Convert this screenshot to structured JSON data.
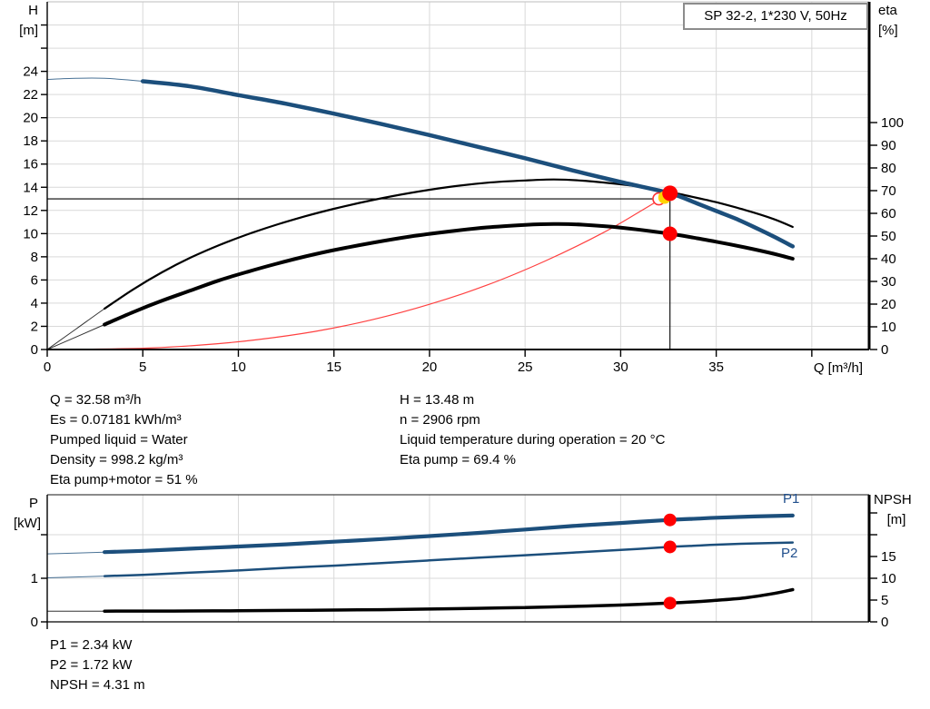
{
  "title_box": {
    "label": "SP 32-2, 1*230 V, 50Hz"
  },
  "info": {
    "left": [
      "Q = 32.58 m³/h",
      "Es = 0.07181 kWh/m³",
      "Pumped liquid = Water",
      "Density = 998.2 kg/m³",
      "Eta pump+motor = 51 %"
    ],
    "right": [
      "H = 13.48 m",
      "n = 2906 rpm",
      "Liquid temperature during operation = 20 °C",
      "Eta pump = 69.4 %"
    ],
    "bottom": [
      "P1 = 2.34 kW",
      "P2 = 1.72 kW",
      "NPSH = 4.31 m"
    ]
  },
  "operating_point": {
    "Q_m3h": 32.58,
    "H_m": 13.48,
    "eta_pump_pct": 69.4,
    "eta_pump_motor_pct": 51,
    "P1_kW": 2.34,
    "P2_kW": 1.72,
    "NPSH_m": 4.31,
    "n_rpm": 2906,
    "spec_Q_m3h": 32,
    "spec_H_m": 13
  },
  "colors": {
    "curve_blue": "#1c4f7c",
    "label_blue": "#1f4e8c",
    "red": "#ff0000",
    "system_red": "#ff4040",
    "yellow": "#ffd400",
    "grid": "#d9d9d9",
    "black": "#000000"
  },
  "chart_data": [
    {
      "id": "qh-chart",
      "type": "line",
      "title": "SP 32-2, 1*230 V, 50Hz",
      "x_axis": {
        "label": "Q [m³/h]",
        "min": 0,
        "max": 43,
        "show_labels": true,
        "ticks": [
          {
            "v": 0,
            "label": "0"
          },
          {
            "v": 5,
            "label": "5"
          },
          {
            "v": 10,
            "label": "10"
          },
          {
            "v": 15,
            "label": "15"
          },
          {
            "v": 20,
            "label": "20"
          },
          {
            "v": 25,
            "label": "25"
          },
          {
            "v": 30,
            "label": "30"
          },
          {
            "v": 35,
            "label": "35"
          },
          {
            "v": 40,
            "label": ""
          }
        ],
        "gridlines": [
          5,
          10,
          15,
          20,
          25,
          30,
          35,
          40
        ]
      },
      "y_left": {
        "label": "H",
        "unit": "[m]",
        "min": 0,
        "max": 30,
        "ticks": [
          {
            "v": 0,
            "label": "0"
          },
          {
            "v": 2,
            "label": "2"
          },
          {
            "v": 4,
            "label": "4"
          },
          {
            "v": 6,
            "label": "6"
          },
          {
            "v": 8,
            "label": "8"
          },
          {
            "v": 10,
            "label": "10"
          },
          {
            "v": 12,
            "label": "12"
          },
          {
            "v": 14,
            "label": "14"
          },
          {
            "v": 16,
            "label": "16"
          },
          {
            "v": 18,
            "label": "18"
          },
          {
            "v": 20,
            "label": "20"
          },
          {
            "v": 22,
            "label": "22"
          },
          {
            "v": 24,
            "label": "24"
          },
          {
            "v": 26,
            "label": ""
          },
          {
            "v": 28,
            "label": ""
          }
        ],
        "gridlines": [
          2,
          4,
          6,
          8,
          10,
          12,
          14,
          16,
          18,
          20,
          22,
          24,
          26,
          28
        ]
      },
      "y_right": {
        "label": "eta",
        "unit": "[%]",
        "min": 0,
        "max": 153.2,
        "ticks": [
          {
            "v": 0,
            "label": "0"
          },
          {
            "v": 10,
            "label": "10"
          },
          {
            "v": 20,
            "label": "20"
          },
          {
            "v": 30,
            "label": "30"
          },
          {
            "v": 40,
            "label": "40"
          },
          {
            "v": 50,
            "label": "50"
          },
          {
            "v": 60,
            "label": "60"
          },
          {
            "v": 70,
            "label": "70"
          },
          {
            "v": 80,
            "label": "80"
          },
          {
            "v": 90,
            "label": "90"
          },
          {
            "v": 100,
            "label": "100"
          }
        ]
      },
      "duty": {
        "spec_q": 32,
        "spec_h": 13,
        "actual_q": 32.58,
        "actual_h": 13.48
      },
      "series": [
        {
          "name": "system-curve",
          "axis": "left",
          "color": "#ff4040",
          "width": 1.2,
          "points": [
            [
              0,
              0
            ],
            [
              5,
              0.11
            ],
            [
              8,
              0.38
            ],
            [
              11,
              0.85
            ],
            [
              14,
              1.56
            ],
            [
              17,
              2.57
            ],
            [
              20,
              3.9
            ],
            [
              23,
              5.55
            ],
            [
              26,
              7.6
            ],
            [
              29,
              10.0
            ],
            [
              31,
              11.9
            ],
            [
              32.58,
              13.48
            ]
          ]
        },
        {
          "name": "eta-pump-motor-curve",
          "axis": "right",
          "color": "#000000",
          "width": 4,
          "thin_until": 3,
          "points": [
            [
              0,
              0
            ],
            [
              1.5,
              5.5
            ],
            [
              3,
              11
            ],
            [
              4.5,
              16.5
            ],
            [
              6,
              21.5
            ],
            [
              7.5,
              26
            ],
            [
              9,
              30.5
            ],
            [
              10.5,
              34.3
            ],
            [
              12,
              37.8
            ],
            [
              13.5,
              41
            ],
            [
              15,
              43.8
            ],
            [
              17,
              47
            ],
            [
              19,
              49.8
            ],
            [
              21,
              52
            ],
            [
              23,
              53.8
            ],
            [
              25,
              54.9
            ],
            [
              26.5,
              55.3
            ],
            [
              28,
              55
            ],
            [
              30,
              53.7
            ],
            [
              32.58,
              51
            ],
            [
              34,
              49
            ],
            [
              35,
              47.5
            ],
            [
              36.5,
              45
            ],
            [
              38,
              42.2
            ],
            [
              39,
              40
            ]
          ]
        },
        {
          "name": "eta-pump-curve",
          "axis": "right",
          "color": "#000000",
          "width": 2.2,
          "thin_until": 3,
          "points": [
            [
              0,
              0
            ],
            [
              1.5,
              9
            ],
            [
              3,
              18
            ],
            [
              4.5,
              26.5
            ],
            [
              6,
              34
            ],
            [
              7.5,
              40.5
            ],
            [
              9,
              46
            ],
            [
              10.5,
              50.8
            ],
            [
              12,
              55
            ],
            [
              13.5,
              58.7
            ],
            [
              15,
              62
            ],
            [
              17,
              65.8
            ],
            [
              19,
              69
            ],
            [
              21,
              71.6
            ],
            [
              23,
              73.5
            ],
            [
              25,
              74.5
            ],
            [
              26.5,
              74.9
            ],
            [
              28,
              74.4
            ],
            [
              30,
              72.8
            ],
            [
              31.5,
              71.2
            ],
            [
              32.58,
              69.4
            ],
            [
              34,
              66.8
            ],
            [
              35,
              64.9
            ],
            [
              36.5,
              61.5
            ],
            [
              38,
              57.5
            ],
            [
              39,
              54
            ]
          ]
        },
        {
          "name": "head-curve",
          "axis": "left",
          "color": "#1c4f7c",
          "width": 4.5,
          "thin_until": 3.2,
          "points": [
            [
              0,
              23.3
            ],
            [
              1.5,
              23.4
            ],
            [
              3,
              23.4
            ],
            [
              5,
              23.15
            ],
            [
              7.5,
              22.7
            ],
            [
              10,
              21.95
            ],
            [
              12.5,
              21.2
            ],
            [
              15,
              20.35
            ],
            [
              17.5,
              19.45
            ],
            [
              20,
              18.5
            ],
            [
              22.5,
              17.5
            ],
            [
              25,
              16.5
            ],
            [
              27.5,
              15.45
            ],
            [
              30,
              14.45
            ],
            [
              32.58,
              13.48
            ],
            [
              34,
              12.6
            ],
            [
              35,
              11.95
            ],
            [
              36,
              11.3
            ],
            [
              37,
              10.55
            ],
            [
              38,
              9.75
            ],
            [
              39,
              8.9
            ]
          ]
        }
      ],
      "markers": [
        {
          "type": "open-circle",
          "axis": "left",
          "q": 32,
          "v": 13,
          "r": 6.5,
          "color": "#ff3333"
        },
        {
          "type": "dot",
          "axis": "right",
          "q": 32.3,
          "v": 67,
          "r": 7,
          "color": "#ffd400"
        },
        {
          "type": "dot",
          "axis": "left",
          "q": 32.58,
          "v": 13.48,
          "r": 8.5,
          "color": "#ff0000"
        },
        {
          "type": "dot",
          "axis": "right",
          "q": 32.58,
          "v": 51,
          "r": 8,
          "color": "#ff0000"
        }
      ]
    },
    {
      "id": "power-npsh-chart",
      "type": "line",
      "curve_labels": {
        "p1": "P1",
        "p2": "P2"
      },
      "x_axis": {
        "label": "",
        "min": 0,
        "max": 43,
        "show_labels": false,
        "ticks": [
          {
            "v": 0,
            "label": ""
          }
        ],
        "gridlines": [
          5,
          10,
          15,
          20,
          25,
          30,
          35,
          40
        ]
      },
      "y_left": {
        "label": "P",
        "unit": "[kW]",
        "min": 0,
        "max": 2.917,
        "ticks": [
          {
            "v": 0,
            "label": "0"
          },
          {
            "v": 1,
            "label": "1"
          },
          {
            "v": 2,
            "label": ""
          }
        ],
        "gridlines": [
          1,
          2
        ]
      },
      "y_right": {
        "label": "NPSH",
        "unit": "[m]",
        "min": 0,
        "max": 29.17,
        "ticks": [
          {
            "v": 0,
            "label": "0"
          },
          {
            "v": 5,
            "label": "5"
          },
          {
            "v": 10,
            "label": "10"
          },
          {
            "v": 15,
            "label": "15"
          },
          {
            "v": 20,
            "label": ""
          },
          {
            "v": 25,
            "label": ""
          }
        ]
      },
      "series": [
        {
          "name": "npsh-curve",
          "axis": "right",
          "color": "#000000",
          "width": 3.5,
          "thin_until": 3,
          "points": [
            [
              0,
              2.45
            ],
            [
              3,
              2.45
            ],
            [
              5,
              2.47
            ],
            [
              7.5,
              2.5
            ],
            [
              10,
              2.55
            ],
            [
              12.5,
              2.62
            ],
            [
              15,
              2.7
            ],
            [
              17.5,
              2.8
            ],
            [
              20,
              2.93
            ],
            [
              22.5,
              3.1
            ],
            [
              25,
              3.3
            ],
            [
              27.5,
              3.55
            ],
            [
              30,
              3.85
            ],
            [
              32.58,
              4.31
            ],
            [
              34,
              4.65
            ],
            [
              35,
              4.95
            ],
            [
              36.5,
              5.5
            ],
            [
              38,
              6.5
            ],
            [
              39,
              7.4
            ]
          ]
        },
        {
          "name": "p2-curve",
          "axis": "left",
          "color": "#1c4f7c",
          "width": 2.5,
          "thin_until": 3,
          "points": [
            [
              0,
              1.01
            ],
            [
              3,
              1.05
            ],
            [
              5,
              1.08
            ],
            [
              7.5,
              1.13
            ],
            [
              10,
              1.18
            ],
            [
              12.5,
              1.24
            ],
            [
              15,
              1.29
            ],
            [
              17.5,
              1.35
            ],
            [
              20,
              1.41
            ],
            [
              22.5,
              1.47
            ],
            [
              25,
              1.53
            ],
            [
              27.5,
              1.59
            ],
            [
              30,
              1.65
            ],
            [
              32.58,
              1.72
            ],
            [
              34,
              1.75
            ],
            [
              35,
              1.77
            ],
            [
              37,
              1.8
            ],
            [
              39,
              1.82
            ]
          ]
        },
        {
          "name": "p1-curve",
          "axis": "left",
          "color": "#1c4f7c",
          "width": 4.2,
          "thin_until": 3,
          "points": [
            [
              0,
              1.56
            ],
            [
              3,
              1.6
            ],
            [
              5,
              1.63
            ],
            [
              7.5,
              1.68
            ],
            [
              10,
              1.73
            ],
            [
              12.5,
              1.78
            ],
            [
              15,
              1.84
            ],
            [
              17.5,
              1.9
            ],
            [
              20,
              1.97
            ],
            [
              22.5,
              2.04
            ],
            [
              25,
              2.12
            ],
            [
              27.5,
              2.2
            ],
            [
              30,
              2.27
            ],
            [
              32.58,
              2.34
            ],
            [
              34,
              2.37
            ],
            [
              35,
              2.39
            ],
            [
              37,
              2.42
            ],
            [
              39,
              2.44
            ]
          ]
        }
      ],
      "markers": [
        {
          "type": "dot",
          "axis": "left",
          "q": 32.58,
          "v": 2.34,
          "r": 7,
          "color": "#ff0000"
        },
        {
          "type": "dot",
          "axis": "left",
          "q": 32.58,
          "v": 1.72,
          "r": 7,
          "color": "#ff0000"
        },
        {
          "type": "dot",
          "axis": "right",
          "q": 32.58,
          "v": 4.31,
          "r": 7,
          "color": "#ff0000"
        }
      ]
    }
  ]
}
